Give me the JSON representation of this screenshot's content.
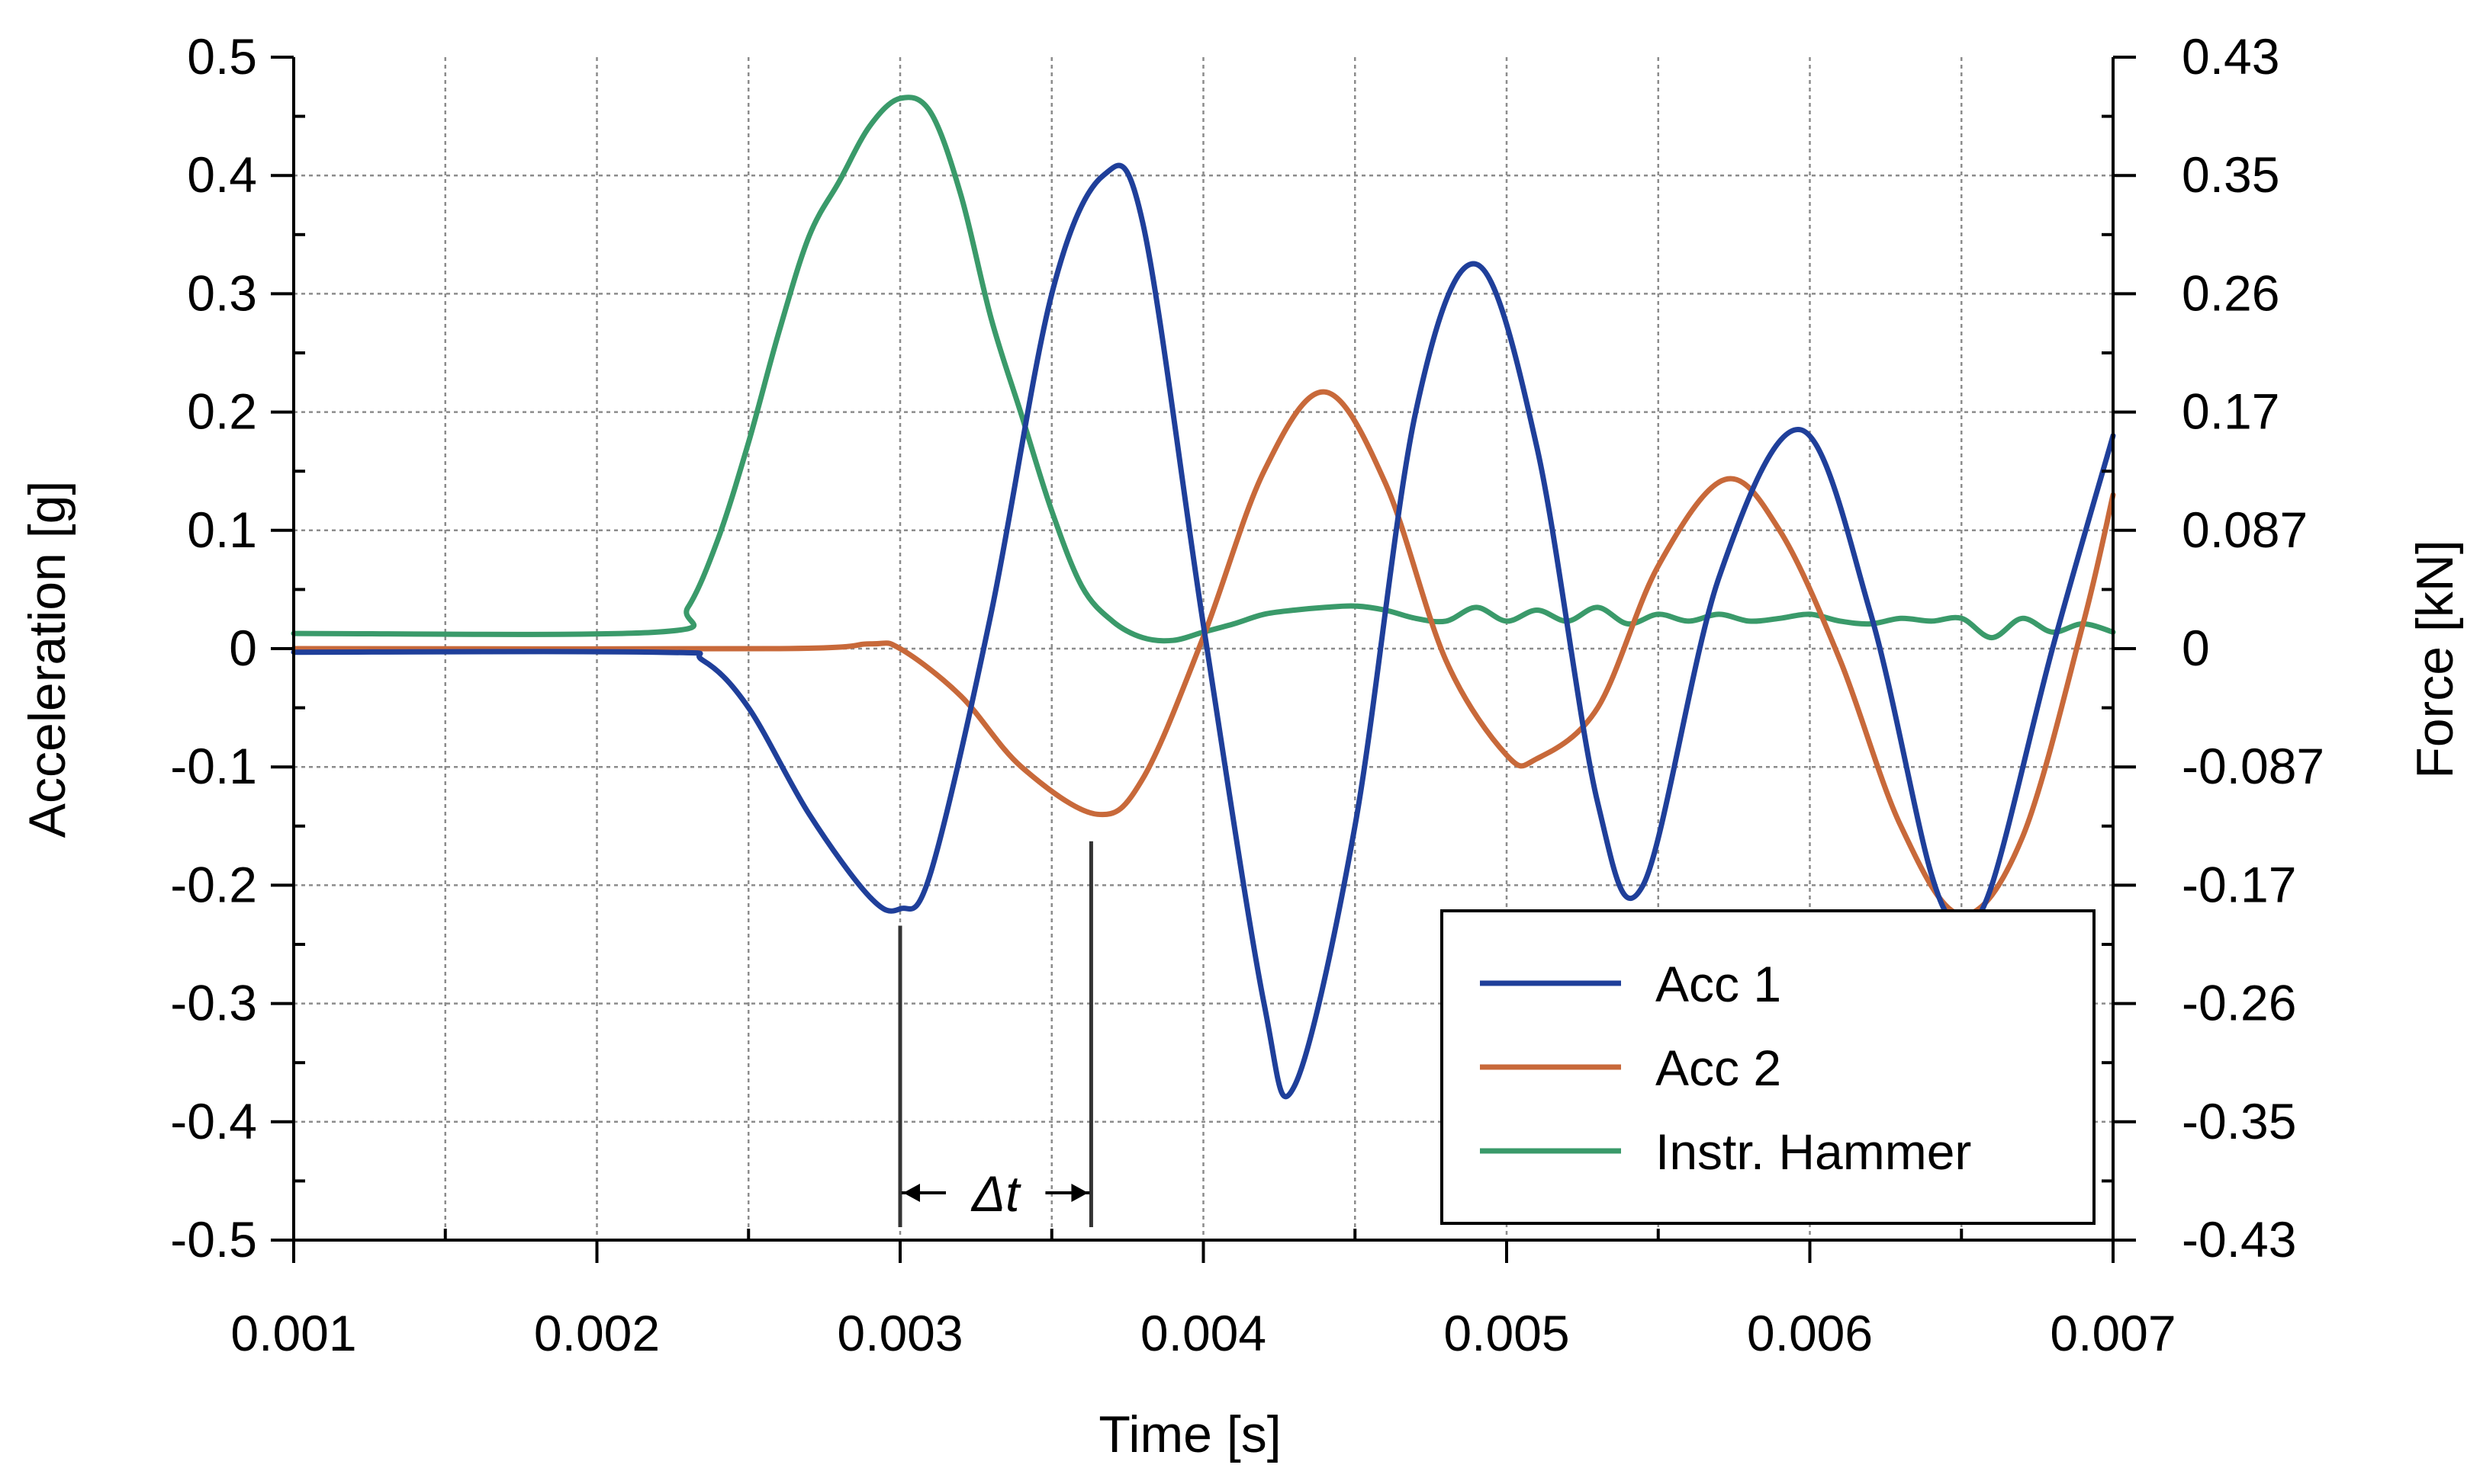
{
  "chart_data": {
    "type": "line",
    "xlabel": "Time [s]",
    "ylabel": "Acceleration [g]",
    "y2label": "Force [kN]",
    "xlim": [
      0.001,
      0.007
    ],
    "ylim": [
      -0.5,
      0.5
    ],
    "y2lim": [
      -0.43,
      0.43
    ],
    "x_ticks": [
      0.001,
      0.002,
      0.003,
      0.004,
      0.005,
      0.006,
      0.007
    ],
    "x_tick_labels": [
      "0.001",
      "0.002",
      "0.003",
      "0.004",
      "0.005",
      "0.006",
      "0.007"
    ],
    "y_ticks": [
      0.5,
      0.4,
      0.3,
      0.2,
      0.1,
      0,
      -0.1,
      -0.2,
      -0.3,
      -0.4,
      -0.5
    ],
    "y_tick_labels": [
      "0.5",
      "0.4",
      "0.3",
      "0.2",
      "0.1",
      "0",
      "-0.1",
      "-0.2",
      "-0.3",
      "-0.4",
      "-0.5"
    ],
    "y2_tick_labels": [
      "0.43",
      "0.35",
      "0.26",
      "0.17",
      "0.087",
      "0",
      "-0.087",
      "-0.17",
      "-0.26",
      "-0.35",
      "-0.43"
    ],
    "grid": true,
    "legend_position": "bottom-right",
    "series": [
      {
        "name": "Acc 1",
        "color": "#1f3f9a",
        "axis": "left",
        "x": [
          0.001,
          0.0022,
          0.00235,
          0.0025,
          0.0027,
          0.0029,
          0.003,
          0.0031,
          0.0033,
          0.0035,
          0.00367,
          0.0038,
          0.004,
          0.0042,
          0.0043,
          0.0045,
          0.0047,
          0.0049,
          0.0051,
          0.0053,
          0.00545,
          0.0057,
          0.00597,
          0.0062,
          0.0064,
          0.0065,
          0.0066,
          0.0068,
          0.007
        ],
        "y": [
          -0.003,
          -0.003,
          -0.01,
          -0.05,
          -0.14,
          -0.21,
          -0.22,
          -0.19,
          0.03,
          0.3,
          0.4,
          0.36,
          0.02,
          -0.3,
          -0.37,
          -0.15,
          0.2,
          0.325,
          0.17,
          -0.13,
          -0.2,
          0.06,
          0.185,
          0.03,
          -0.19,
          -0.23,
          -0.2,
          0.0,
          0.18
        ]
      },
      {
        "name": "Acc 2",
        "color": "#c8693a",
        "axis": "left",
        "x": [
          0.001,
          0.0026,
          0.0029,
          0.003,
          0.0032,
          0.0034,
          0.00365,
          0.0038,
          0.004,
          0.0042,
          0.0044,
          0.0046,
          0.0048,
          0.005,
          0.0051,
          0.0053,
          0.0055,
          0.00572,
          0.0059,
          0.0061,
          0.0063,
          0.0065,
          0.0067,
          0.0069,
          0.007
        ],
        "y": [
          0.0,
          0.0,
          0.004,
          0.0,
          -0.04,
          -0.1,
          -0.14,
          -0.11,
          0.01,
          0.15,
          0.217,
          0.14,
          -0.01,
          -0.09,
          -0.093,
          -0.05,
          0.07,
          0.143,
          0.1,
          -0.01,
          -0.15,
          -0.225,
          -0.16,
          0.02,
          0.13
        ]
      },
      {
        "name": "Instr. Hammer",
        "color": "#3a9a6a",
        "axis": "right",
        "x": [
          0.001,
          0.0022,
          0.0023,
          0.0024,
          0.0025,
          0.0026,
          0.0027,
          0.0028,
          0.0029,
          0.003,
          0.0031,
          0.0032,
          0.0033,
          0.0034,
          0.0035,
          0.0036,
          0.0037,
          0.0038,
          0.0039,
          0.004,
          0.0041,
          0.0042,
          0.0043,
          0.0044,
          0.0045,
          0.0046,
          0.0047,
          0.0048,
          0.0049,
          0.005,
          0.0051,
          0.0052,
          0.0053,
          0.0054,
          0.0055,
          0.0056,
          0.0057,
          0.0058,
          0.0059,
          0.006,
          0.0061,
          0.0062,
          0.0063,
          0.0064,
          0.0065,
          0.0066,
          0.0067,
          0.0068,
          0.0069,
          0.007
        ],
        "y": [
          0.011,
          0.012,
          0.03,
          0.08,
          0.15,
          0.23,
          0.3,
          0.34,
          0.38,
          0.4,
          0.39,
          0.33,
          0.24,
          0.17,
          0.1,
          0.045,
          0.02,
          0.008,
          0.006,
          0.012,
          0.018,
          0.025,
          0.028,
          0.03,
          0.031,
          0.028,
          0.022,
          0.02,
          0.03,
          0.02,
          0.028,
          0.02,
          0.03,
          0.018,
          0.025,
          0.02,
          0.025,
          0.02,
          0.022,
          0.025,
          0.02,
          0.018,
          0.022,
          0.02,
          0.022,
          0.008,
          0.022,
          0.012,
          0.018,
          0.012
        ]
      }
    ],
    "annotations": [
      {
        "text": "Δt",
        "x_start": 0.003,
        "x_end": 0.00363,
        "y_start_marker": -0.22,
        "y_end_marker": -0.15
      }
    ]
  }
}
